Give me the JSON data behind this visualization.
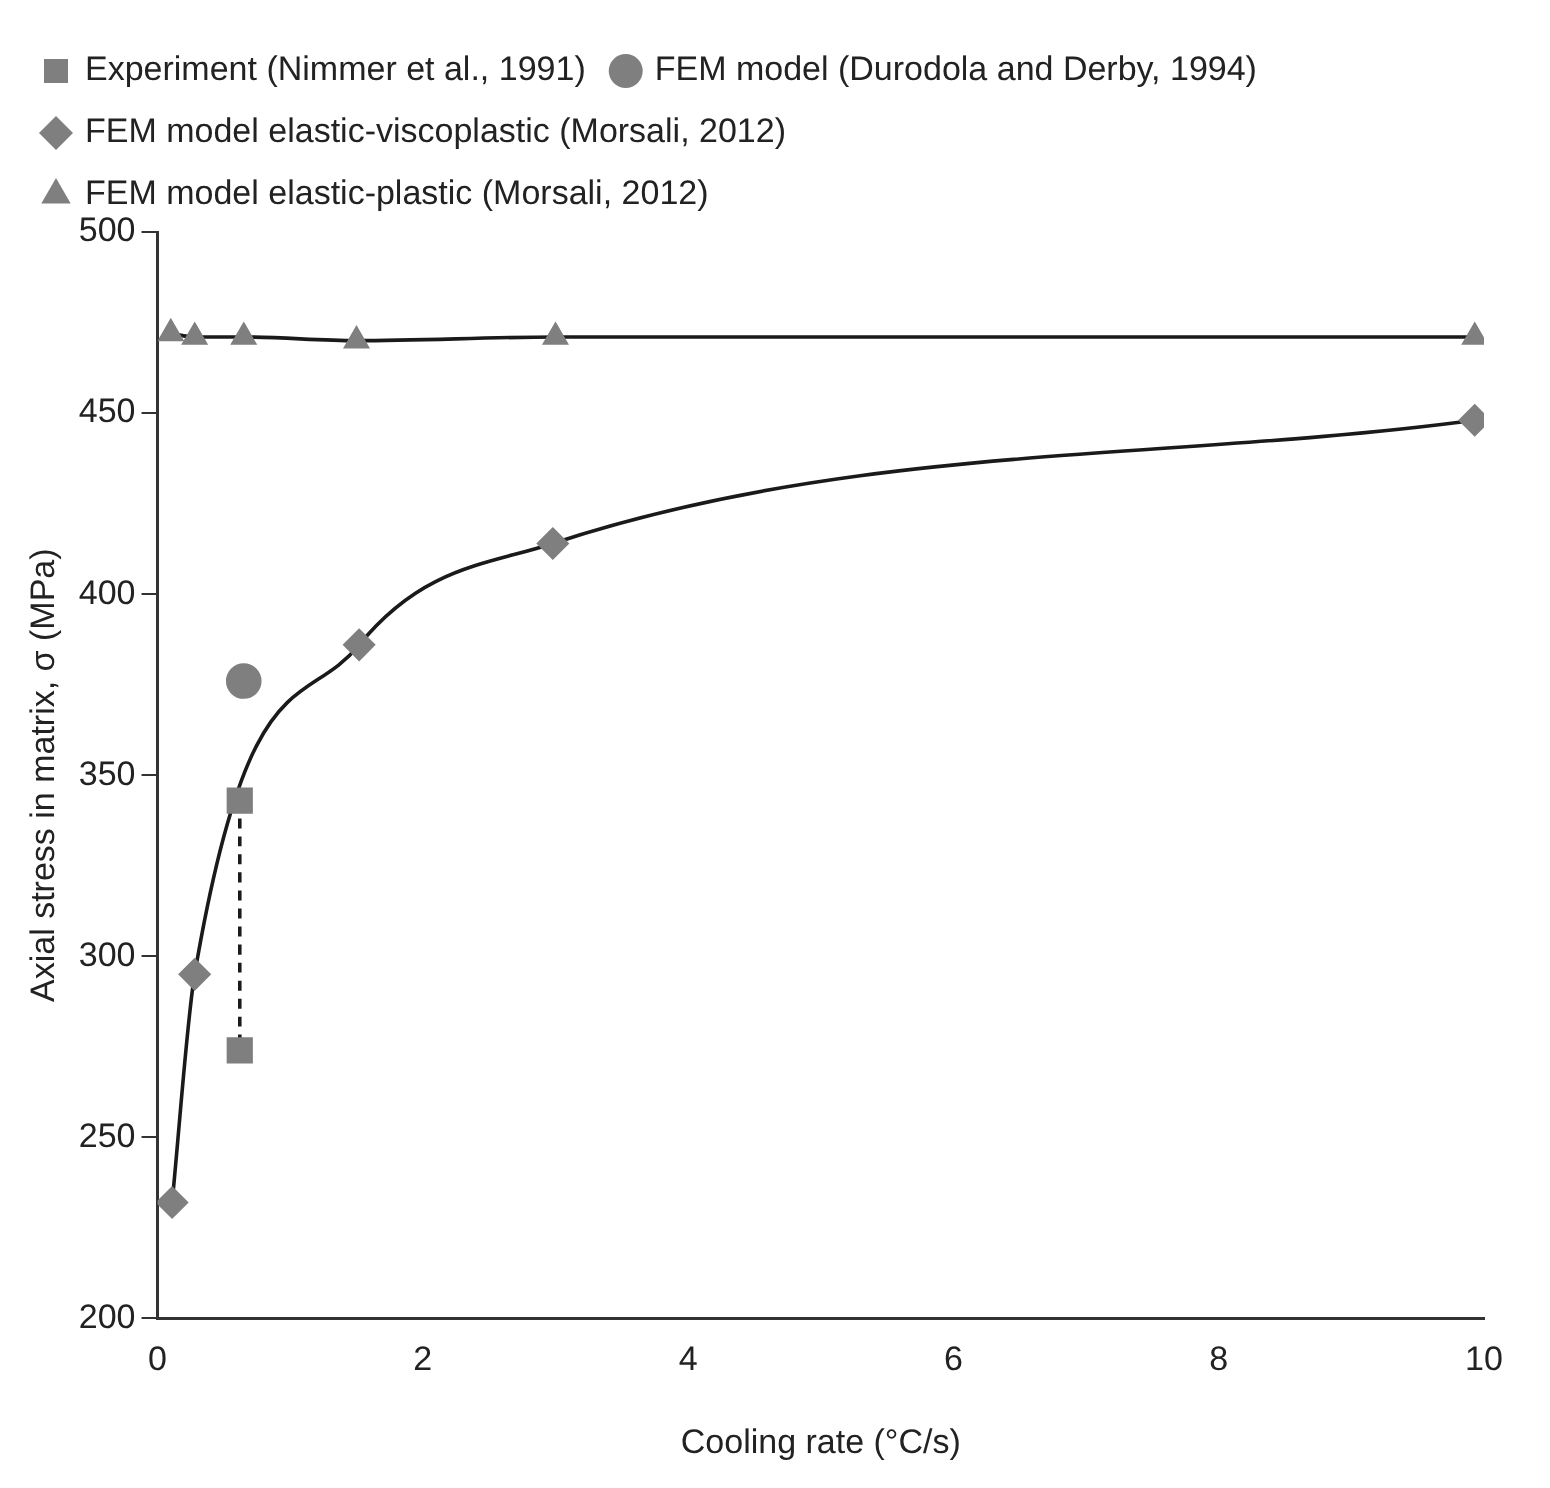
{
  "chart_data": {
    "type": "line",
    "xlabel": "Cooling rate (°C/s)",
    "ylabel": "Axial stress in matrix, σ (MPa)",
    "xlim": [
      0,
      10
    ],
    "xticks": [
      0,
      2,
      4,
      6,
      8,
      10
    ],
    "ylim": [
      200,
      500
    ],
    "yticks": [
      200,
      250,
      300,
      350,
      400,
      450,
      500
    ],
    "grid": false,
    "legend": "top",
    "series": [
      {
        "name": "Experiment (Nimmer et al., 1991)",
        "line_style": "dashed",
        "marker": "square",
        "color": "#7f7f7f",
        "x": [
          0.62,
          0.62
        ],
        "values": [
          343,
          274
        ]
      },
      {
        "name": "FEM model (Durodola and Derby, 1994)",
        "type": "scatter",
        "marker": "circle",
        "color": "#7f7f7f",
        "x": [
          0.65
        ],
        "values": [
          376
        ]
      },
      {
        "name": "FEM model elastic-viscoplastic (Morsali, 2012)",
        "line_style": "solid",
        "marker": "diamond",
        "color": "#7f7f7f",
        "x": [
          0.11,
          0.28,
          1.52,
          2.98,
          9.93
        ],
        "values": [
          232,
          295,
          386,
          414,
          448
        ]
      },
      {
        "name": "FEM model elastic-plastic (Morsali, 2012)",
        "line_style": "solid",
        "marker": "triangle",
        "color": "#7f7f7f",
        "x": [
          0.1,
          0.28,
          0.65,
          1.5,
          3,
          9.93
        ],
        "values": [
          472,
          471,
          471,
          470,
          471,
          471
        ]
      }
    ]
  }
}
